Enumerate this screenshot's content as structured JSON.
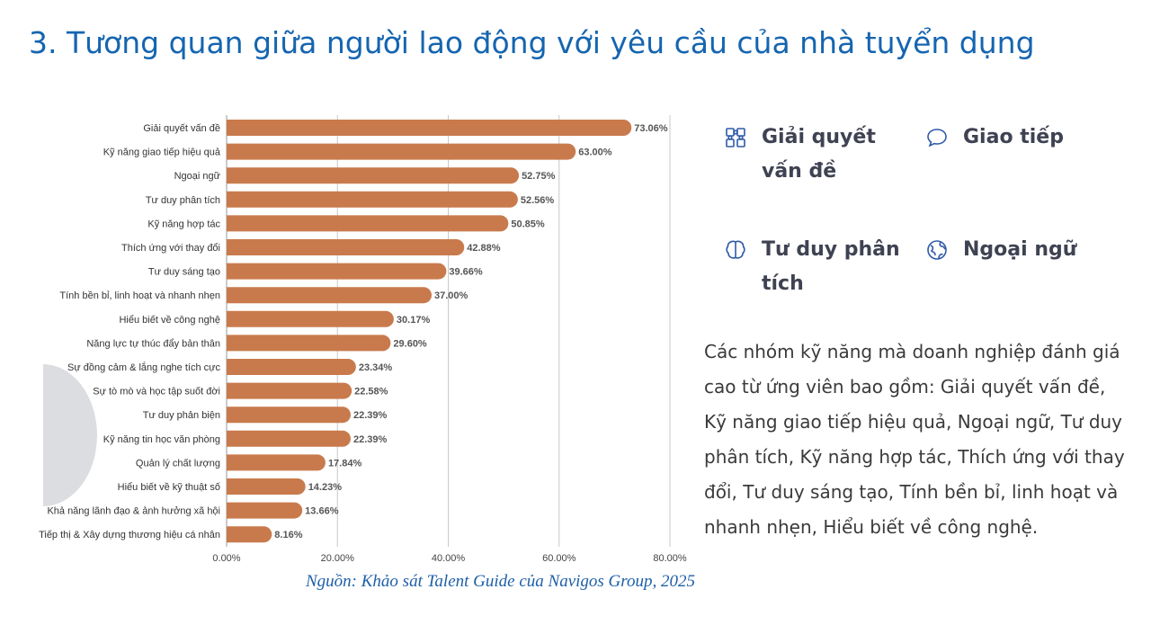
{
  "title": "3. Tương quan giữa người lao động với yêu cầu của nhà tuyển dụng",
  "source": "Nguồn: Khảo sát Talent Guide của Navigos Group, 2025",
  "skills": [
    {
      "label": "Giải quyết vấn đề",
      "icon": "puzzle-icon"
    },
    {
      "label": "Giao tiếp",
      "icon": "speech-bubble-icon"
    },
    {
      "label": "Tư duy phân tích",
      "icon": "brain-icon"
    },
    {
      "label": "Ngoại ngữ",
      "icon": "globe-icon"
    }
  ],
  "description": "Các nhóm kỹ năng mà doanh nghiệp đánh giá cao từ ứng viên bao gồm: Giải quyết vấn đề, Kỹ năng giao tiếp hiệu quả, Ngoại ngữ, Tư duy phân tích, Kỹ năng hợp tác, Thích ứng với thay đổi, Tư duy sáng tạo, Tính bền bỉ, linh hoạt và nhanh nhẹn, Hiểu biết về công nghệ.",
  "colors": {
    "bar": "#c97a4c",
    "accent": "#1565b0",
    "icon": "#2f5aa8"
  },
  "chart_data": {
    "type": "bar",
    "orientation": "horizontal",
    "categories": [
      "Giải quyết vấn đề",
      "Kỹ năng giao tiếp hiệu quả",
      "Ngoại ngữ",
      "Tư duy phân tích",
      "Kỹ năng hợp tác",
      "Thích ứng với thay đổi",
      "Tư duy sáng tạo",
      "Tính bền bỉ, linh hoạt và nhanh nhẹn",
      "Hiểu biết về công nghệ",
      "Năng lực tự thúc đẩy bản thân",
      "Sự đồng cảm & lắng nghe tích cực",
      "Sự tò mò và học tập suốt đời",
      "Tư duy phản biện",
      "Kỹ năng tin học văn phòng",
      "Quản lý chất lượng",
      "Hiểu biết về kỹ thuật số",
      "Khả năng lãnh đạo & ảnh hưởng xã hội",
      "Tiếp thị & Xây dựng thương hiệu cá nhân"
    ],
    "values": [
      73.06,
      63.0,
      52.75,
      52.56,
      50.85,
      42.88,
      39.66,
      37.0,
      30.17,
      29.6,
      23.34,
      22.58,
      22.39,
      22.39,
      17.84,
      14.23,
      13.66,
      8.16
    ],
    "value_labels": [
      "73.06%",
      "63.00%",
      "52.75%",
      "52.56%",
      "50.85%",
      "42.88%",
      "39.66%",
      "37.00%",
      "30.17%",
      "29.60%",
      "23.34%",
      "22.58%",
      "22.39%",
      "22.39%",
      "17.84%",
      "14.23%",
      "13.66%",
      "8.16%"
    ],
    "xticks": [
      0,
      20,
      40,
      60,
      80
    ],
    "xtick_labels": [
      "0.00%",
      "20.00%",
      "40.00%",
      "60.00%",
      "80.00%"
    ],
    "xlim": [
      0,
      80
    ],
    "grid": true
  }
}
